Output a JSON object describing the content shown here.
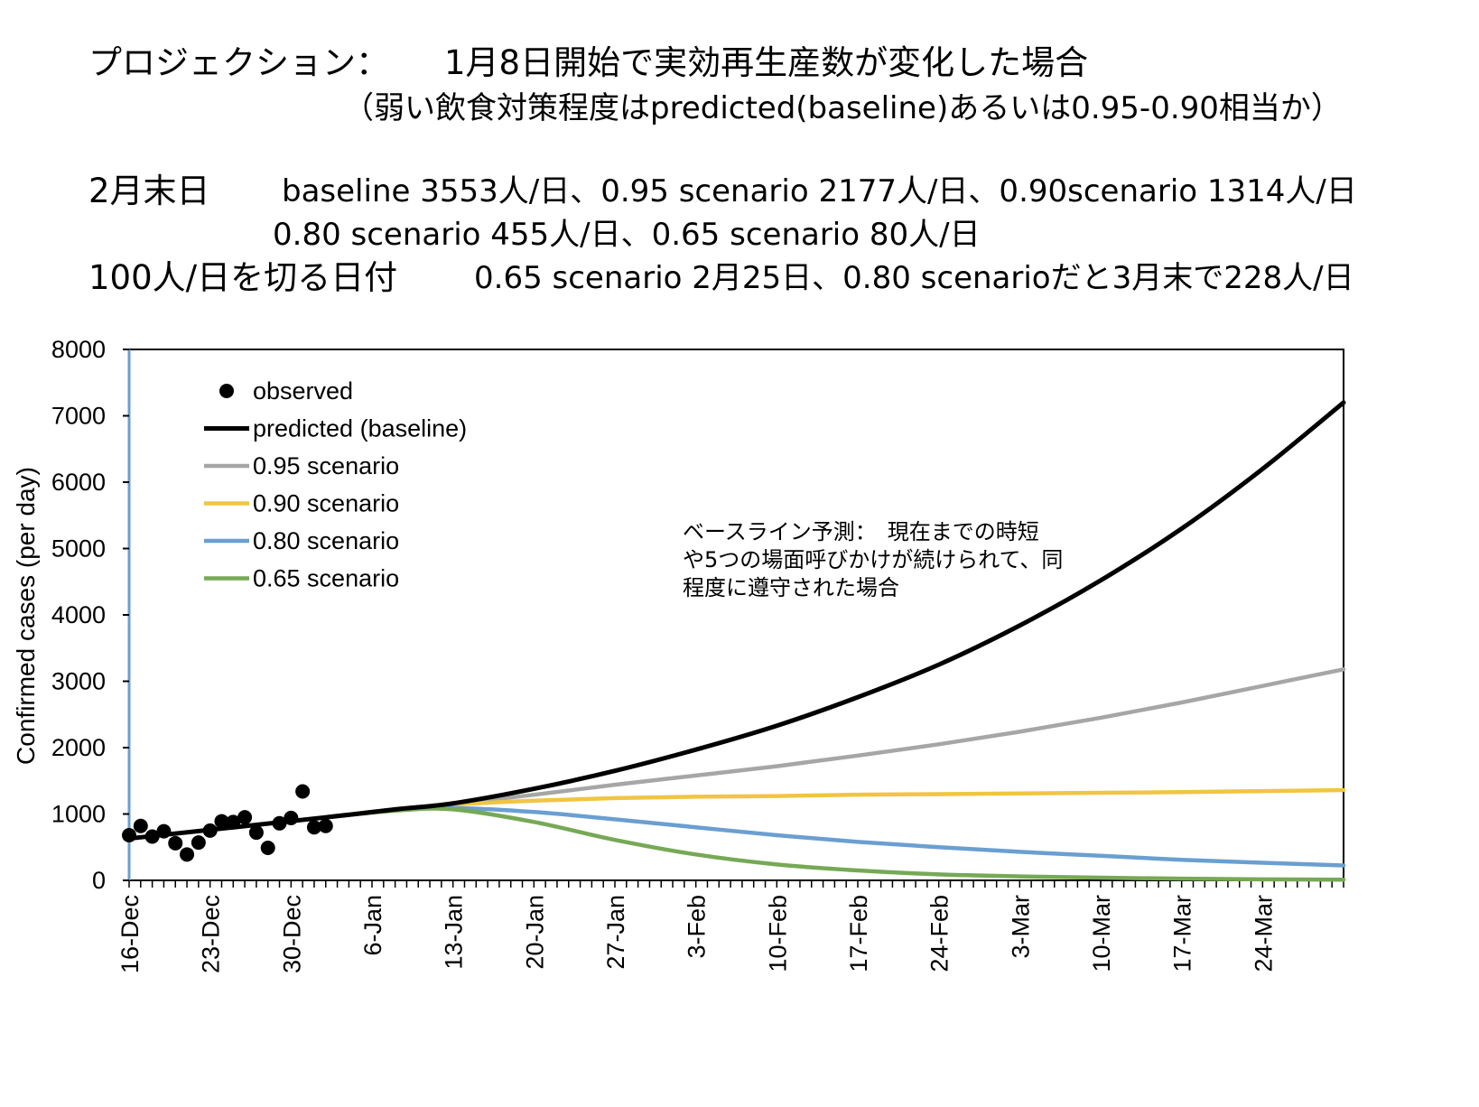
{
  "header": {
    "line1_a": "プロジェクション：",
    "line1_b": "1月8日開始で実効再生産数が変化した場合",
    "line2": "（弱い飲食対策程度はpredicted(baseline)あるいは0.95-0.90相当か）",
    "line3_label": "2月末日",
    "line3_values": "baseline 3553人/日、0.95 scenario 2177人/日、0.90scenario 1314人/日",
    "line4_values": "0.80 scenario 455人/日、0.65 scenario 80人/日",
    "line5_label": "100人/日を切る日付",
    "line5_values": "0.65 scenario 2月25日、0.80 scenarioだと3月末で228人/日"
  },
  "chart_data": {
    "type": "line",
    "title": "",
    "xlabel": "",
    "ylabel": "Confirmed cases (per day)",
    "ylim": [
      0,
      8000
    ],
    "yticks": [
      0,
      1000,
      2000,
      3000,
      4000,
      5000,
      6000,
      7000,
      8000
    ],
    "x_start": "16-Dec",
    "x_end": "31-Mar",
    "x_tick_labels": [
      "16-Dec",
      "23-Dec",
      "30-Dec",
      "6-Jan",
      "13-Jan",
      "20-Jan",
      "27-Jan",
      "3-Feb",
      "10-Feb",
      "17-Feb",
      "24-Feb",
      "3-Mar",
      "10-Mar",
      "17-Mar",
      "24-Mar"
    ],
    "annotation": [
      "ベースライン予測：　現在までの時短",
      "や5つの場面呼びかけが続けられて、同",
      "程度に遵守された場合"
    ],
    "legend_position": "top-left",
    "observed": {
      "name": "observed",
      "color": "#000000",
      "x": [
        "16-Dec",
        "17-Dec",
        "18-Dec",
        "19-Dec",
        "20-Dec",
        "21-Dec",
        "22-Dec",
        "23-Dec",
        "24-Dec",
        "25-Dec",
        "26-Dec",
        "27-Dec",
        "28-Dec",
        "29-Dec",
        "30-Dec",
        "31-Dec",
        "1-Jan",
        "2-Jan"
      ],
      "y": [
        680,
        820,
        660,
        740,
        560,
        390,
        570,
        750,
        890,
        880,
        950,
        720,
        490,
        860,
        940,
        1340,
        800,
        820
      ]
    },
    "series": [
      {
        "name": "predicted (baseline)",
        "color": "#000000",
        "width": 5,
        "points": [
          [
            "16-Dec",
            630
          ],
          [
            "2-Jan",
            950
          ],
          [
            "8-Jan",
            1070
          ],
          [
            "13-Jan",
            1160
          ],
          [
            "20-Jan",
            1380
          ],
          [
            "27-Jan",
            1650
          ],
          [
            "3-Feb",
            1970
          ],
          [
            "10-Feb",
            2330
          ],
          [
            "17-Feb",
            2760
          ],
          [
            "24-Feb",
            3250
          ],
          [
            "3-Mar",
            3840
          ],
          [
            "10-Mar",
            4520
          ],
          [
            "17-Mar",
            5300
          ],
          [
            "24-Mar",
            6200
          ],
          [
            "31-Mar",
            7200
          ]
        ]
      },
      {
        "name": "0.95 scenario",
        "color": "#a6a6a6",
        "width": 4.5,
        "points": [
          [
            "2-Jan",
            950
          ],
          [
            "8-Jan",
            1070
          ],
          [
            "13-Jan",
            1150
          ],
          [
            "20-Jan",
            1290
          ],
          [
            "27-Jan",
            1440
          ],
          [
            "3-Feb",
            1580
          ],
          [
            "10-Feb",
            1720
          ],
          [
            "17-Feb",
            1880
          ],
          [
            "24-Feb",
            2050
          ],
          [
            "3-Mar",
            2240
          ],
          [
            "10-Mar",
            2450
          ],
          [
            "17-Mar",
            2680
          ],
          [
            "24-Mar",
            2930
          ],
          [
            "31-Mar",
            3180
          ]
        ]
      },
      {
        "name": "0.90 scenario",
        "color": "#f0c543",
        "width": 4.5,
        "points": [
          [
            "2-Jan",
            950
          ],
          [
            "8-Jan",
            1070
          ],
          [
            "13-Jan",
            1140
          ],
          [
            "20-Jan",
            1200
          ],
          [
            "27-Jan",
            1240
          ],
          [
            "3-Feb",
            1260
          ],
          [
            "10-Feb",
            1270
          ],
          [
            "17-Feb",
            1290
          ],
          [
            "24-Feb",
            1300
          ],
          [
            "3-Mar",
            1310
          ],
          [
            "10-Mar",
            1320
          ],
          [
            "17-Mar",
            1330
          ],
          [
            "24-Mar",
            1345
          ],
          [
            "31-Mar",
            1360
          ]
        ]
      },
      {
        "name": "0.80 scenario",
        "color": "#6a9fd0",
        "width": 4.5,
        "points": [
          [
            "2-Jan",
            950
          ],
          [
            "8-Jan",
            1060
          ],
          [
            "13-Jan",
            1090
          ],
          [
            "20-Jan",
            1030
          ],
          [
            "27-Jan",
            920
          ],
          [
            "3-Feb",
            800
          ],
          [
            "10-Feb",
            680
          ],
          [
            "17-Feb",
            580
          ],
          [
            "24-Feb",
            500
          ],
          [
            "3-Mar",
            430
          ],
          [
            "10-Mar",
            370
          ],
          [
            "17-Mar",
            310
          ],
          [
            "24-Mar",
            265
          ],
          [
            "31-Mar",
            225
          ]
        ]
      },
      {
        "name": "0.65 scenario",
        "color": "#76a955",
        "width": 4.5,
        "points": [
          [
            "2-Jan",
            950
          ],
          [
            "8-Jan",
            1050
          ],
          [
            "13-Jan",
            1070
          ],
          [
            "20-Jan",
            880
          ],
          [
            "27-Jan",
            610
          ],
          [
            "3-Feb",
            390
          ],
          [
            "10-Feb",
            240
          ],
          [
            "17-Feb",
            150
          ],
          [
            "24-Feb",
            90
          ],
          [
            "3-Mar",
            60
          ],
          [
            "10-Mar",
            40
          ],
          [
            "17-Mar",
            25
          ],
          [
            "24-Mar",
            15
          ],
          [
            "31-Mar",
            10
          ]
        ]
      }
    ]
  }
}
